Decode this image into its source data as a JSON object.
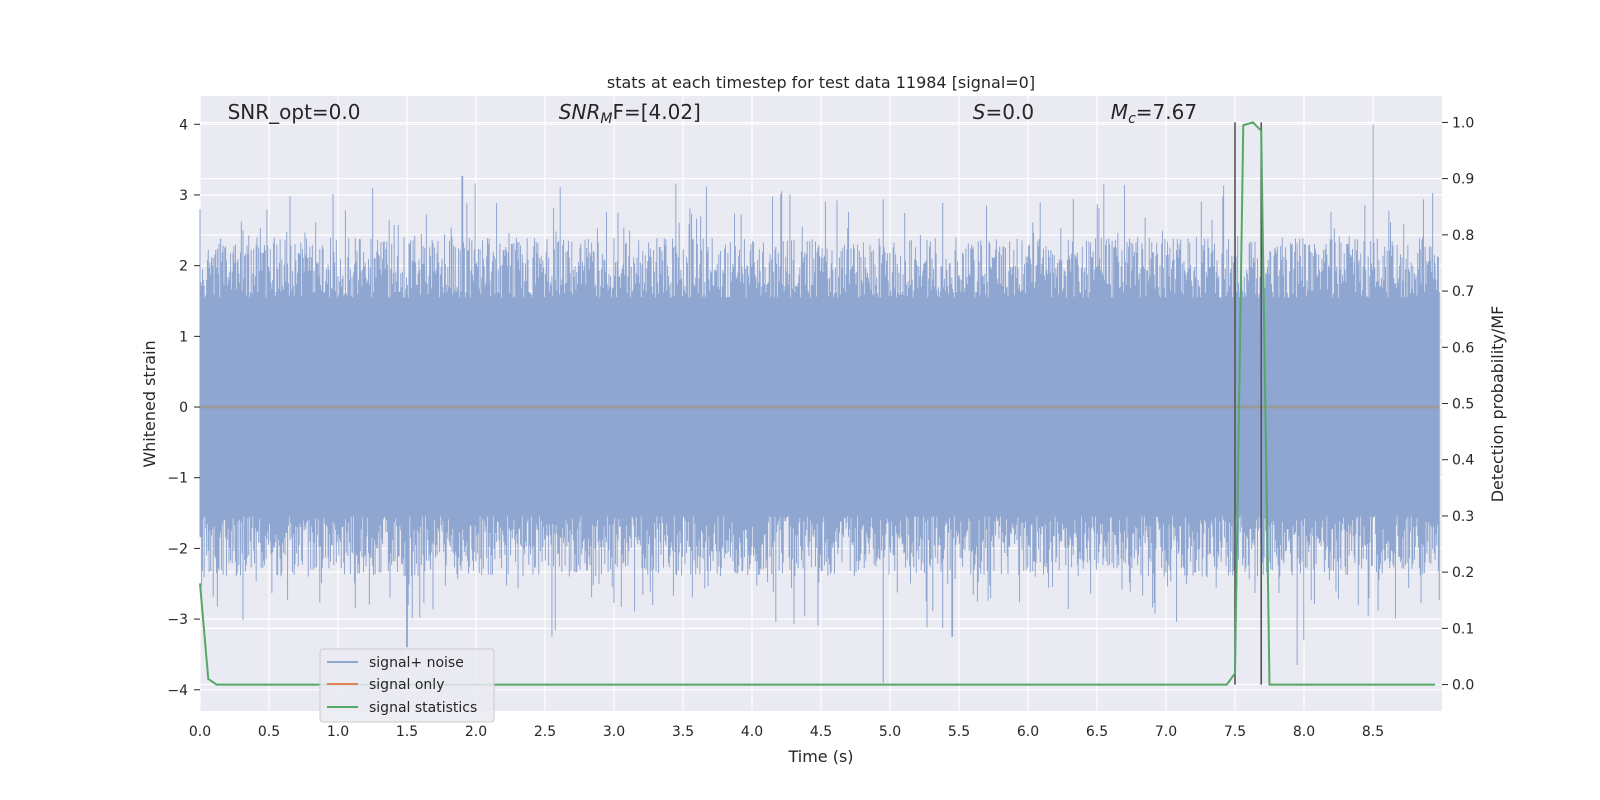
{
  "chart_data": {
    "type": "line",
    "title": "stats at each timestep for test data 11984 [signal=0]",
    "xlabel": "Time (s)",
    "ylabel": "Whitened strain",
    "ylabel_right": "Detection probability/MF",
    "xlim": [
      0.0,
      9.0
    ],
    "ylim": [
      -4.3,
      4.4
    ],
    "ylim_right": [
      -0.047,
      1.047
    ],
    "xticks": [
      "0.0",
      "0.5",
      "1.0",
      "1.5",
      "2.0",
      "2.5",
      "3.0",
      "3.5",
      "4.0",
      "4.5",
      "5.0",
      "5.5",
      "6.0",
      "6.5",
      "7.0",
      "7.5",
      "8.0",
      "8.5"
    ],
    "xtick_values": [
      0,
      0.5,
      1.0,
      1.5,
      2.0,
      2.5,
      3.0,
      3.5,
      4.0,
      4.5,
      5.0,
      5.5,
      6.0,
      6.5,
      7.0,
      7.5,
      8.0,
      8.5
    ],
    "yticks": [
      "4",
      "3",
      "2",
      "1",
      "0",
      "−1",
      "−2",
      "−3",
      "−4"
    ],
    "ytick_values": [
      4,
      3,
      2,
      1,
      0,
      -1,
      -2,
      -3,
      -4
    ],
    "yticks_right": [
      "1.0",
      "0.9",
      "0.8",
      "0.7",
      "0.6",
      "0.5",
      "0.4",
      "0.3",
      "0.2",
      "0.1",
      "0.0"
    ],
    "ytick_right_values": [
      1.0,
      0.9,
      0.8,
      0.7,
      0.6,
      0.5,
      0.4,
      0.3,
      0.2,
      0.1,
      0.0
    ],
    "grid": true,
    "legend_placement": "lower-left",
    "annotations": [
      {
        "label": "SNR_opt=0.0",
        "x": 0.2,
        "y": 4.1
      },
      {
        "label": "SNR",
        "sub": "M",
        "rest": "F=[4.02]",
        "x": 2.6,
        "y": 4.1
      },
      {
        "label": "S",
        "rest": "=0.0",
        "x": 5.6,
        "y": 4.1
      },
      {
        "label": "M",
        "sub": "c",
        "rest": "=7.67",
        "x": 6.6,
        "y": 4.1
      }
    ],
    "vlines": [
      7.5,
      7.69
    ],
    "series": [
      {
        "name": "signal+ noise",
        "color": "#8fa6d0",
        "axis": "left",
        "noise_envelope": {
          "core": 1.6,
          "peaks_high": [
            [
              0.0,
              2.8
            ],
            [
              1.25,
              3.1
            ],
            [
              1.9,
              3.27
            ],
            [
              3.45,
              3.16
            ],
            [
              4.95,
              2.94
            ],
            [
              6.55,
              3.15
            ],
            [
              8.5,
              4.0
            ]
          ],
          "peaks_low": [
            [
              1.5,
              -3.4
            ],
            [
              2.55,
              -3.25
            ],
            [
              4.95,
              -3.9
            ],
            [
              5.45,
              -3.25
            ],
            [
              7.95,
              -3.65
            ],
            [
              8.0,
              -3.3
            ]
          ]
        }
      },
      {
        "name": "signal only",
        "color": "#dd8452",
        "axis": "left",
        "x": [
          0.0,
          9.0
        ],
        "y": [
          0.0,
          0.0
        ]
      },
      {
        "name": "signal statistics",
        "color": "#55a868",
        "axis": "right",
        "x": [
          0.0,
          0.06,
          0.12,
          0.5,
          1.0,
          2.0,
          3.0,
          4.0,
          5.0,
          6.0,
          7.0,
          7.44,
          7.5,
          7.56,
          7.63,
          7.69,
          7.75,
          7.81,
          8.0,
          8.5,
          8.95
        ],
        "y": [
          0.18,
          0.01,
          0.0,
          0.0,
          0.0,
          0.0,
          0.0,
          0.0,
          0.0,
          0.0,
          0.0,
          0.0,
          0.02,
          0.995,
          1.0,
          0.985,
          0.0,
          0.0,
          0.0,
          0.0,
          0.0
        ]
      }
    ]
  }
}
